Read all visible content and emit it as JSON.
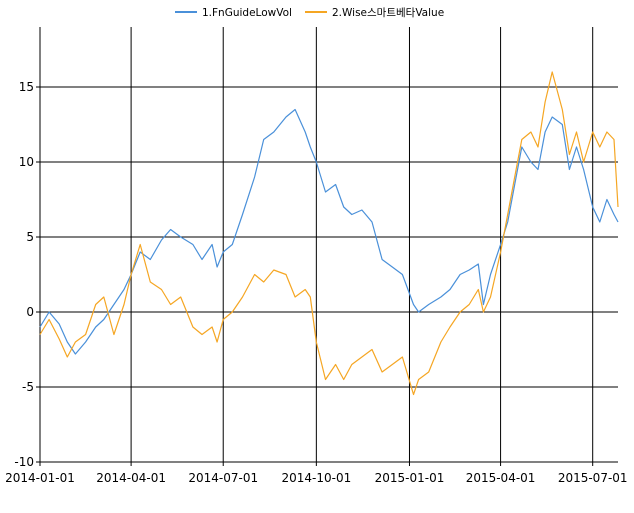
{
  "chart_data": {
    "type": "line",
    "title": "",
    "xlabel": "",
    "ylabel": "",
    "x_ticks": [
      "2014-01-01",
      "2014-04-01",
      "2014-07-01",
      "2014-10-01",
      "2015-01-01",
      "2015-04-01",
      "2015-07-01"
    ],
    "x_range": [
      "2014-01-01",
      "2015-07-26"
    ],
    "ylim": [
      -10,
      19
    ],
    "y_ticks": [
      -10,
      -5,
      0,
      5,
      10,
      15
    ],
    "grid": true,
    "legend_position": "top-center",
    "series": [
      {
        "name": "1.FnGuideLowVol",
        "color": "#4a90d9",
        "points": [
          [
            "2014-01-01",
            -1.0
          ],
          [
            "2014-01-10",
            0.0
          ],
          [
            "2014-01-20",
            -0.8
          ],
          [
            "2014-01-28",
            -2.0
          ],
          [
            "2014-02-05",
            -2.8
          ],
          [
            "2014-02-15",
            -2.0
          ],
          [
            "2014-02-25",
            -1.0
          ],
          [
            "2014-03-05",
            -0.5
          ],
          [
            "2014-03-15",
            0.5
          ],
          [
            "2014-03-25",
            1.5
          ],
          [
            "2014-04-01",
            2.5
          ],
          [
            "2014-04-10",
            4.0
          ],
          [
            "2014-04-20",
            3.5
          ],
          [
            "2014-05-01",
            4.8
          ],
          [
            "2014-05-10",
            5.5
          ],
          [
            "2014-05-20",
            5.0
          ],
          [
            "2014-06-01",
            4.5
          ],
          [
            "2014-06-10",
            3.5
          ],
          [
            "2014-06-20",
            4.5
          ],
          [
            "2014-06-25",
            3.0
          ],
          [
            "2014-07-01",
            4.0
          ],
          [
            "2014-07-10",
            4.5
          ],
          [
            "2014-07-20",
            6.5
          ],
          [
            "2014-08-01",
            9.0
          ],
          [
            "2014-08-10",
            11.5
          ],
          [
            "2014-08-20",
            12.0
          ],
          [
            "2014-09-01",
            13.0
          ],
          [
            "2014-09-10",
            13.5
          ],
          [
            "2014-09-20",
            12.0
          ],
          [
            "2014-09-25",
            11.0
          ],
          [
            "2014-10-01",
            10.0
          ],
          [
            "2014-10-10",
            8.0
          ],
          [
            "2014-10-20",
            8.5
          ],
          [
            "2014-10-28",
            7.0
          ],
          [
            "2014-11-05",
            6.5
          ],
          [
            "2014-11-15",
            6.8
          ],
          [
            "2014-11-25",
            6.0
          ],
          [
            "2014-12-05",
            3.5
          ],
          [
            "2014-12-15",
            3.0
          ],
          [
            "2014-12-25",
            2.5
          ],
          [
            "2015-01-05",
            0.5
          ],
          [
            "2015-01-10",
            0.0
          ],
          [
            "2015-01-20",
            0.5
          ],
          [
            "2015-02-01",
            1.0
          ],
          [
            "2015-02-10",
            1.5
          ],
          [
            "2015-02-20",
            2.5
          ],
          [
            "2015-03-01",
            2.8
          ],
          [
            "2015-03-10",
            3.2
          ],
          [
            "2015-03-15",
            0.5
          ],
          [
            "2015-03-22",
            2.5
          ],
          [
            "2015-04-01",
            4.5
          ],
          [
            "2015-04-08",
            6.0
          ],
          [
            "2015-04-15",
            8.5
          ],
          [
            "2015-04-22",
            11.0
          ],
          [
            "2015-05-01",
            10.0
          ],
          [
            "2015-05-08",
            9.5
          ],
          [
            "2015-05-15",
            12.0
          ],
          [
            "2015-05-22",
            13.0
          ],
          [
            "2015-06-01",
            12.5
          ],
          [
            "2015-06-08",
            9.5
          ],
          [
            "2015-06-15",
            11.0
          ],
          [
            "2015-06-22",
            9.5
          ],
          [
            "2015-07-01",
            7.0
          ],
          [
            "2015-07-08",
            6.0
          ],
          [
            "2015-07-15",
            7.5
          ],
          [
            "2015-07-22",
            6.5
          ],
          [
            "2015-07-26",
            6.0
          ]
        ]
      },
      {
        "name": "2.Wise스마트베타Value",
        "color": "#f5a623",
        "points": [
          [
            "2014-01-01",
            -1.5
          ],
          [
            "2014-01-10",
            -0.5
          ],
          [
            "2014-01-20",
            -1.8
          ],
          [
            "2014-01-28",
            -3.0
          ],
          [
            "2014-02-05",
            -2.0
          ],
          [
            "2014-02-15",
            -1.5
          ],
          [
            "2014-02-25",
            0.5
          ],
          [
            "2014-03-05",
            1.0
          ],
          [
            "2014-03-15",
            -1.5
          ],
          [
            "2014-03-25",
            0.5
          ],
          [
            "2014-04-01",
            2.5
          ],
          [
            "2014-04-10",
            4.5
          ],
          [
            "2014-04-20",
            2.0
          ],
          [
            "2014-05-01",
            1.5
          ],
          [
            "2014-05-10",
            0.5
          ],
          [
            "2014-05-20",
            1.0
          ],
          [
            "2014-06-01",
            -1.0
          ],
          [
            "2014-06-10",
            -1.5
          ],
          [
            "2014-06-20",
            -1.0
          ],
          [
            "2014-06-25",
            -2.0
          ],
          [
            "2014-07-01",
            -0.5
          ],
          [
            "2014-07-10",
            0.0
          ],
          [
            "2014-07-20",
            1.0
          ],
          [
            "2014-08-01",
            2.5
          ],
          [
            "2014-08-10",
            2.0
          ],
          [
            "2014-08-20",
            2.8
          ],
          [
            "2014-09-01",
            2.5
          ],
          [
            "2014-09-10",
            1.0
          ],
          [
            "2014-09-20",
            1.5
          ],
          [
            "2014-09-25",
            1.0
          ],
          [
            "2014-10-01",
            -2.0
          ],
          [
            "2014-10-10",
            -4.5
          ],
          [
            "2014-10-20",
            -3.5
          ],
          [
            "2014-10-28",
            -4.5
          ],
          [
            "2014-11-05",
            -3.5
          ],
          [
            "2014-11-15",
            -3.0
          ],
          [
            "2014-11-25",
            -2.5
          ],
          [
            "2014-12-05",
            -4.0
          ],
          [
            "2014-12-15",
            -3.5
          ],
          [
            "2014-12-25",
            -3.0
          ],
          [
            "2015-01-05",
            -5.5
          ],
          [
            "2015-01-10",
            -4.5
          ],
          [
            "2015-01-20",
            -4.0
          ],
          [
            "2015-02-01",
            -2.0
          ],
          [
            "2015-02-10",
            -1.0
          ],
          [
            "2015-02-20",
            0.0
          ],
          [
            "2015-03-01",
            0.5
          ],
          [
            "2015-03-10",
            1.5
          ],
          [
            "2015-03-15",
            0.0
          ],
          [
            "2015-03-22",
            1.0
          ],
          [
            "2015-04-01",
            4.0
          ],
          [
            "2015-04-08",
            6.5
          ],
          [
            "2015-04-15",
            9.0
          ],
          [
            "2015-04-22",
            11.5
          ],
          [
            "2015-05-01",
            12.0
          ],
          [
            "2015-05-08",
            11.0
          ],
          [
            "2015-05-15",
            14.0
          ],
          [
            "2015-05-22",
            16.0
          ],
          [
            "2015-06-01",
            13.5
          ],
          [
            "2015-06-08",
            10.5
          ],
          [
            "2015-06-15",
            12.0
          ],
          [
            "2015-06-22",
            10.0
          ],
          [
            "2015-07-01",
            12.0
          ],
          [
            "2015-07-08",
            11.0
          ],
          [
            "2015-07-15",
            12.0
          ],
          [
            "2015-07-22",
            11.5
          ],
          [
            "2015-07-26",
            7.0
          ]
        ]
      }
    ]
  }
}
